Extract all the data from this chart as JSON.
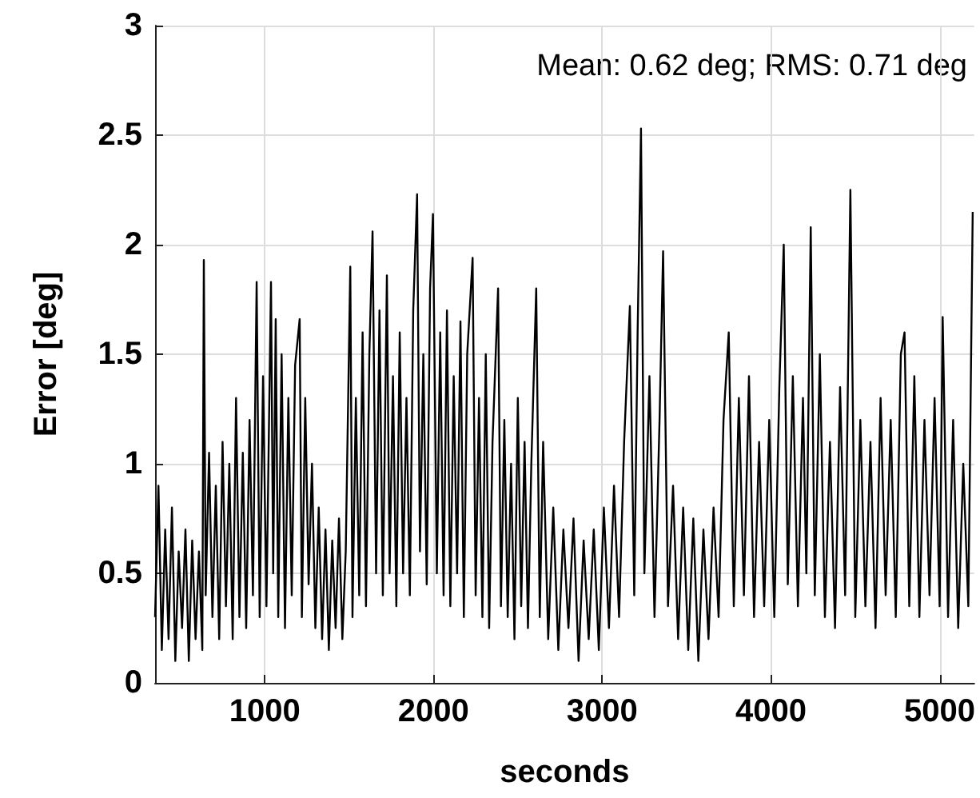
{
  "chart_data": {
    "type": "line",
    "xlabel": "seconds",
    "ylabel": "Error [deg]",
    "annotations": [
      "Mean: 0.62 deg; RMS: 0.71 deg"
    ],
    "xlim": [
      350,
      5205
    ],
    "ylim": [
      0,
      3
    ],
    "xticks": [
      1000,
      2000,
      3000,
      4000,
      5000
    ],
    "yticks": [
      0,
      0.5,
      1,
      1.5,
      2,
      2.5,
      3
    ],
    "grid": true,
    "marker": "none",
    "line_style": "solid",
    "series": [
      {
        "color": "#000000",
        "x": [
          350,
          370,
          390,
          410,
          430,
          450,
          470,
          490,
          510,
          530,
          550,
          570,
          590,
          610,
          630,
          639,
          650,
          670,
          690,
          710,
          730,
          750,
          770,
          790,
          810,
          830,
          850,
          870,
          890,
          910,
          930,
          952,
          970,
          990,
          1010,
          1037,
          1050,
          1065,
          1080,
          1100,
          1120,
          1140,
          1160,
          1180,
          1207,
          1220,
          1240,
          1260,
          1280,
          1300,
          1320,
          1340,
          1360,
          1380,
          1400,
          1420,
          1440,
          1460,
          1480,
          1507,
          1520,
          1540,
          1560,
          1580,
          1600,
          1620,
          1639,
          1660,
          1680,
          1700,
          1724,
          1740,
          1760,
          1780,
          1800,
          1820,
          1840,
          1860,
          1880,
          1903,
          1920,
          1940,
          1960,
          1980,
          1997,
          2020,
          2040,
          2060,
          2080,
          2100,
          2120,
          2140,
          2160,
          2180,
          2200,
          2232,
          2250,
          2270,
          2290,
          2310,
          2330,
          2350,
          2383,
          2400,
          2420,
          2440,
          2460,
          2480,
          2500,
          2520,
          2540,
          2560,
          2580,
          2609,
          2630,
          2650,
          2680,
          2710,
          2740,
          2770,
          2800,
          2830,
          2860,
          2890,
          2920,
          2950,
          2980,
          3010,
          3040,
          3070,
          3100,
          3130,
          3164,
          3190,
          3210,
          3230,
          3250,
          3280,
          3310,
          3340,
          3361,
          3390,
          3420,
          3450,
          3480,
          3510,
          3540,
          3570,
          3600,
          3630,
          3660,
          3690,
          3719,
          3750,
          3780,
          3810,
          3840,
          3870,
          3900,
          3930,
          3960,
          3990,
          4020,
          4050,
          4076,
          4100,
          4130,
          4160,
          4190,
          4210,
          4236,
          4260,
          4290,
          4320,
          4350,
          4380,
          4410,
          4440,
          4471,
          4500,
          4530,
          4560,
          4590,
          4620,
          4650,
          4680,
          4710,
          4740,
          4770,
          4792,
          4820,
          4850,
          4880,
          4910,
          4940,
          4970,
          5000,
          5018,
          5050,
          5080,
          5110,
          5140,
          5170,
          5196
        ],
        "values": [
          0.3,
          0.9,
          0.15,
          0.7,
          0.2,
          0.8,
          0.1,
          0.6,
          0.25,
          0.7,
          0.1,
          0.65,
          0.2,
          0.6,
          0.15,
          1.93,
          0.4,
          1.05,
          0.3,
          0.9,
          0.2,
          1.1,
          0.35,
          1.0,
          0.2,
          1.3,
          0.3,
          1.05,
          0.25,
          1.2,
          0.4,
          1.83,
          0.3,
          1.4,
          0.35,
          1.83,
          0.5,
          1.66,
          0.3,
          1.5,
          0.25,
          1.3,
          0.4,
          1.45,
          1.66,
          0.3,
          1.3,
          0.45,
          1.0,
          0.25,
          0.8,
          0.2,
          0.7,
          0.15,
          0.65,
          0.25,
          0.75,
          0.2,
          0.6,
          1.9,
          0.3,
          1.3,
          0.4,
          1.6,
          0.35,
          1.5,
          2.06,
          0.5,
          1.7,
          0.4,
          1.86,
          0.5,
          1.4,
          0.35,
          1.6,
          0.5,
          1.3,
          0.4,
          1.7,
          2.23,
          0.6,
          1.5,
          0.45,
          1.8,
          2.14,
          0.5,
          1.6,
          0.4,
          1.7,
          0.35,
          1.4,
          0.5,
          1.65,
          0.3,
          1.5,
          1.94,
          0.4,
          1.3,
          0.3,
          1.5,
          0.25,
          1.1,
          1.8,
          0.35,
          1.2,
          0.3,
          1.0,
          0.2,
          1.3,
          0.35,
          1.1,
          0.25,
          1.0,
          1.8,
          0.3,
          1.1,
          0.2,
          0.8,
          0.15,
          0.7,
          0.25,
          0.75,
          0.1,
          0.65,
          0.2,
          0.7,
          0.15,
          0.8,
          0.25,
          0.9,
          0.3,
          1.1,
          1.72,
          0.4,
          1.6,
          2.53,
          0.5,
          1.4,
          0.3,
          1.2,
          1.97,
          0.35,
          0.9,
          0.2,
          0.8,
          0.15,
          0.75,
          0.1,
          0.7,
          0.2,
          0.8,
          0.3,
          1.2,
          1.6,
          0.35,
          1.3,
          0.4,
          1.4,
          0.3,
          1.1,
          0.35,
          1.2,
          0.3,
          1.35,
          2.0,
          0.45,
          1.4,
          0.35,
          1.3,
          0.5,
          2.08,
          0.4,
          1.5,
          0.3,
          1.1,
          0.25,
          1.35,
          0.4,
          2.25,
          0.3,
          1.2,
          0.35,
          1.1,
          0.25,
          1.3,
          0.4,
          1.2,
          0.3,
          1.5,
          1.6,
          0.35,
          1.4,
          0.3,
          1.2,
          0.4,
          1.3,
          0.35,
          1.67,
          0.3,
          1.2,
          0.25,
          1.0,
          0.35,
          2.15
        ]
      }
    ]
  }
}
